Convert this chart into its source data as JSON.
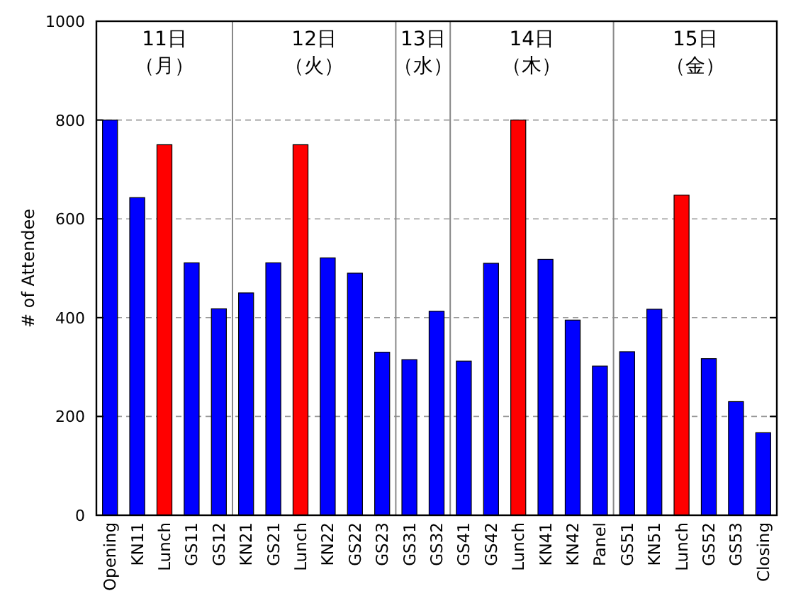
{
  "chart_data": {
    "type": "bar",
    "ylabel": "# of Attendee",
    "categories": [
      "Opening",
      "KN11",
      "Lunch",
      "GS11",
      "GS12",
      "KN21",
      "GS21",
      "Lunch",
      "KN22",
      "GS22",
      "GS23",
      "GS31",
      "GS32",
      "GS41",
      "GS42",
      "Lunch",
      "KN41",
      "KN42",
      "Panel",
      "GS51",
      "KN51",
      "Lunch",
      "GS52",
      "GS53",
      "Closing"
    ],
    "values": [
      800,
      643,
      750,
      511,
      418,
      450,
      511,
      750,
      521,
      490,
      330,
      315,
      413,
      312,
      510,
      800,
      518,
      395,
      302,
      331,
      417,
      648,
      317,
      230,
      167
    ],
    "colors": [
      "#0000ff",
      "#0000ff",
      "#ff0000",
      "#0000ff",
      "#0000ff",
      "#0000ff",
      "#0000ff",
      "#ff0000",
      "#0000ff",
      "#0000ff",
      "#0000ff",
      "#0000ff",
      "#0000ff",
      "#0000ff",
      "#0000ff",
      "#ff0000",
      "#0000ff",
      "#0000ff",
      "#0000ff",
      "#0000ff",
      "#0000ff",
      "#ff0000",
      "#0000ff",
      "#0000ff",
      "#0000ff"
    ],
    "ylim": [
      0,
      1000
    ],
    "yticks": [
      0,
      200,
      400,
      600,
      800,
      1000
    ],
    "grid": "y",
    "annotations": [
      "11日（月）",
      "12日（火）",
      "13日（水）",
      "14日（木）",
      "15日（金）"
    ]
  }
}
